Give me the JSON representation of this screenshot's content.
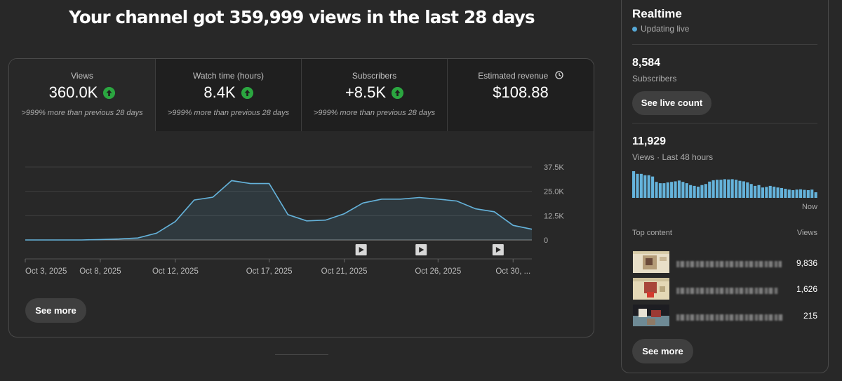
{
  "headline": "Your channel got 359,999 views in the last 28 days",
  "metrics": [
    {
      "label": "Views",
      "value": "360.0K",
      "sub": ">999% more than previous 28 days",
      "up": true
    },
    {
      "label": "Watch time (hours)",
      "value": "8.4K",
      "sub": ">999% more than previous 28 days",
      "up": true
    },
    {
      "label": "Subscribers",
      "value": "+8.5K",
      "sub": ">999% more than previous 28 days",
      "up": true
    },
    {
      "label": "Estimated revenue",
      "value": "$108.88",
      "sub": "",
      "up": false
    }
  ],
  "chart_data": {
    "type": "area",
    "title": "",
    "y_ticks": [
      "37.5K",
      "25.0K",
      "12.5K",
      "0"
    ],
    "ylim": [
      0,
      37500
    ],
    "x_labels": [
      "Oct 3, 2025",
      "Oct 8, 2025",
      "Oct 12, 2025",
      "Oct 17, 2025",
      "Oct 21, 2025",
      "Oct 26, 2025",
      "Oct 30, ..."
    ],
    "x_label_days": [
      0,
      4,
      8,
      13,
      17,
      22,
      26
    ],
    "values": [
      0,
      0,
      0,
      0,
      200,
      500,
      1000,
      3500,
      9500,
      20500,
      22000,
      30500,
      29000,
      29000,
      13000,
      9800,
      10200,
      13500,
      19000,
      21000,
      21000,
      21800,
      21000,
      20000,
      16000,
      14500,
      7500,
      5500
    ],
    "video_marker_days": [
      17.9,
      21.1,
      25.2
    ],
    "color": "#65b3db"
  },
  "see_more": "See more",
  "realtime": {
    "title": "Realtime",
    "status": "Updating live",
    "subscribers": "8,584",
    "subscribers_label": "Subscribers",
    "live_count_button": "See live count",
    "views": "11,929",
    "views_label": "Views · Last 48 hours",
    "now_label": "Now",
    "bars": [
      10,
      9,
      9,
      8.5,
      8.5,
      8,
      6,
      5.5,
      5.5,
      5.8,
      6,
      6.2,
      6.5,
      6,
      5.5,
      4.8,
      4.5,
      4.2,
      4.8,
      5.2,
      6.1,
      6.6,
      6.8,
      6.8,
      7,
      6.9,
      7,
      6.8,
      6.4,
      6.2,
      5.8,
      5.2,
      4.5,
      4.8,
      3.9,
      4.1,
      4.5,
      4.2,
      3.9,
      3.7,
      3.4,
      3.1,
      2.9,
      3.1,
      3.2,
      3,
      2.9,
      3.1,
      2.1
    ],
    "top_content_label": "Top content",
    "views_col_label": "Views",
    "rows": [
      {
        "views": "9,836"
      },
      {
        "views": "1,626"
      },
      {
        "views": "215"
      }
    ],
    "see_more": "See more"
  }
}
